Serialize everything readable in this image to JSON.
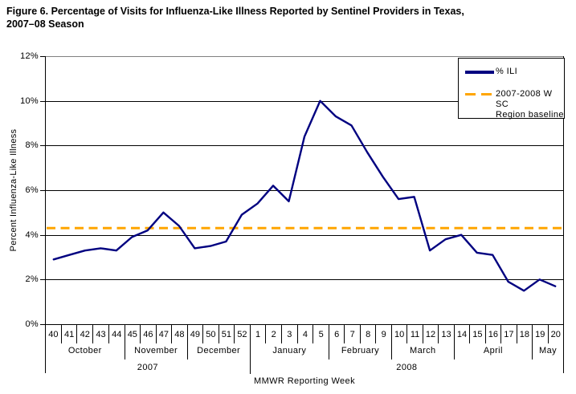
{
  "title": {
    "line1": "Figure 6. Percentage of Visits for Influenza-Like Illness Reported by Sentinel Providers in Texas,",
    "line2": "2007–08 Season"
  },
  "legend": {
    "position": "top-right",
    "ili_label": "% ILI",
    "baseline_label_line1": "2007-2008 W SC",
    "baseline_label_line2": "Region baseline"
  },
  "colors": {
    "ili_line": "#000080",
    "baseline_line": "#ffa500",
    "gridline": "#000000",
    "plot_top_border": "#808080"
  },
  "chart_data": {
    "type": "line",
    "title": "Figure 6. Percentage of Visits for Influenza-Like Illness Reported by Sentinel Providers in Texas, 2007–08 Season",
    "xlabel": "MMWR Reporting Week",
    "ylabel": "Percent Influenza-Like Illness",
    "ylim": [
      0,
      12
    ],
    "grid": true,
    "y_ticks": [
      {
        "value": 0,
        "label": "0%"
      },
      {
        "value": 2,
        "label": "2%"
      },
      {
        "value": 4,
        "label": "4%"
      },
      {
        "value": 6,
        "label": "6%"
      },
      {
        "value": 8,
        "label": "8%"
      },
      {
        "value": 10,
        "label": "10%"
      },
      {
        "value": 12,
        "label": "12%"
      }
    ],
    "weeks": [
      "40",
      "41",
      "42",
      "43",
      "44",
      "45",
      "46",
      "47",
      "48",
      "49",
      "50",
      "51",
      "52",
      "1",
      "2",
      "3",
      "4",
      "5",
      "6",
      "7",
      "8",
      "9",
      "10",
      "11",
      "12",
      "13",
      "14",
      "15",
      "16",
      "17",
      "18",
      "19",
      "20"
    ],
    "month_groups": [
      {
        "label": "October",
        "weeks": 5
      },
      {
        "label": "November",
        "weeks": 4
      },
      {
        "label": "December",
        "weeks": 4
      },
      {
        "label": "January",
        "weeks": 5
      },
      {
        "label": "February",
        "weeks": 4
      },
      {
        "label": "March",
        "weeks": 4
      },
      {
        "label": "April",
        "weeks": 5
      },
      {
        "label": "May",
        "weeks": 2
      }
    ],
    "year_groups": [
      {
        "label": "2007",
        "weeks": 13,
        "months": 3
      },
      {
        "label": "2008",
        "weeks": 20,
        "months": 5
      }
    ],
    "series": [
      {
        "name": "% ILI",
        "style": "solid",
        "values": [
          2.9,
          3.1,
          3.3,
          3.4,
          3.3,
          3.9,
          4.2,
          5.0,
          4.4,
          3.4,
          3.5,
          3.7,
          4.9,
          5.4,
          6.2,
          5.5,
          8.4,
          10.0,
          9.3,
          8.9,
          7.7,
          6.6,
          5.6,
          5.7,
          3.3,
          3.8,
          4.0,
          3.2,
          3.1,
          1.9,
          1.5,
          2.0,
          1.7
        ]
      },
      {
        "name": "2007-2008 W SC Region baseline",
        "style": "dashed",
        "baseline_value": 4.3
      }
    ]
  }
}
